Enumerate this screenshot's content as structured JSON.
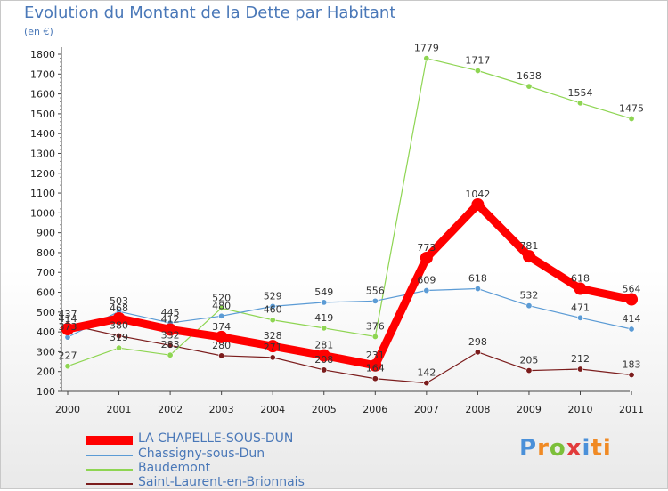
{
  "header": {
    "title": "Evolution du Montant de la Dette par Habitant",
    "subtitle": "(en €)"
  },
  "logo": {
    "text": "Proxiti",
    "letters": [
      "P",
      "r",
      "o",
      "x",
      "i",
      "ti"
    ]
  },
  "chart_data": {
    "type": "line",
    "x": [
      "2000",
      "2001",
      "2002",
      "2003",
      "2004",
      "2005",
      "2006",
      "2007",
      "2008",
      "2009",
      "2010",
      "2011"
    ],
    "ylim": [
      100,
      1800
    ],
    "yticks": [
      100,
      200,
      300,
      400,
      500,
      600,
      700,
      800,
      900,
      1000,
      1100,
      1200,
      1300,
      1400,
      1500,
      1600,
      1700,
      1800
    ],
    "grid": false,
    "legend_position": "bottom-left",
    "series": [
      {
        "name": "LA CHAPELLE-SOUS-DUN",
        "color": "#ff0000",
        "values": [
          414,
          468,
          412,
          374,
          328,
          281,
          231,
          773,
          1042,
          781,
          618,
          564
        ]
      },
      {
        "name": "Chassigny-sous-Dun",
        "color": "#5b9bd5",
        "values": [
          373,
          503,
          445,
          480,
          529,
          549,
          556,
          609,
          618,
          532,
          471,
          414
        ]
      },
      {
        "name": "Baudemont",
        "color": "#8ed552",
        "values": [
          227,
          319,
          283,
          520,
          460,
          419,
          376,
          1779,
          1717,
          1638,
          1554,
          1475
        ]
      },
      {
        "name": "Saint-Laurent-en-Brionnais",
        "color": "#7b1c1c",
        "values": [
          437,
          380,
          332,
          280,
          271,
          208,
          164,
          142,
          298,
          205,
          212,
          183
        ]
      }
    ]
  }
}
